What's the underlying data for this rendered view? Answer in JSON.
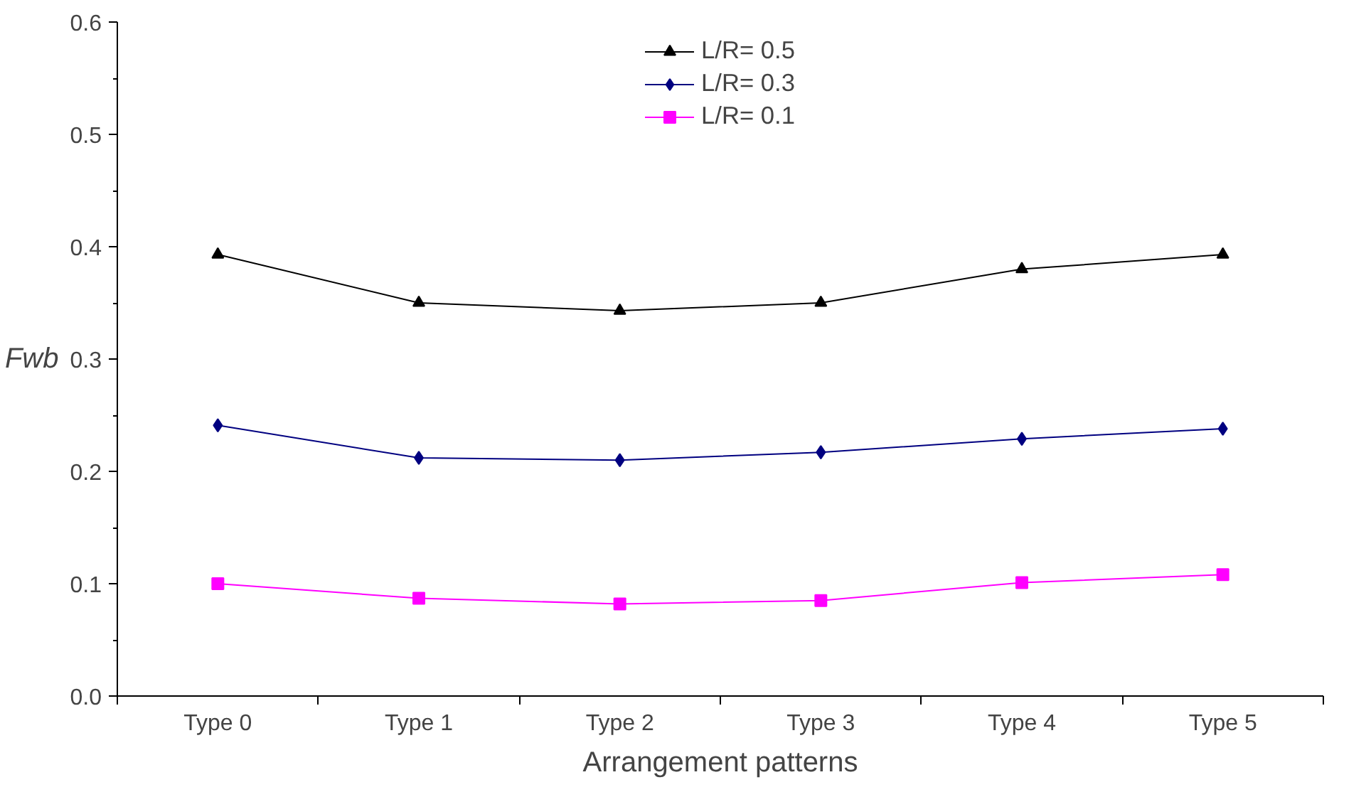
{
  "chart_data": {
    "type": "line",
    "xlabel": "Arrangement patterns",
    "ylabel": "Fwb",
    "categories": [
      "Type 0",
      "Type 1",
      "Type 2",
      "Type 3",
      "Type 4",
      "Type 5"
    ],
    "series": [
      {
        "name": "L/R= 0.5",
        "color": "#000000",
        "marker": "triangle",
        "values": [
          0.393,
          0.35,
          0.343,
          0.35,
          0.38,
          0.393
        ]
      },
      {
        "name": "L/R= 0.3",
        "color": "#000080",
        "marker": "diamond",
        "values": [
          0.241,
          0.212,
          0.21,
          0.217,
          0.229,
          0.238
        ]
      },
      {
        "name": "L/R= 0.1",
        "color": "#ff00ff",
        "marker": "square",
        "values": [
          0.1,
          0.087,
          0.082,
          0.085,
          0.101,
          0.108
        ]
      }
    ],
    "ylim": [
      0,
      0.6
    ],
    "yticks": [
      {
        "value": 0,
        "label": "0.0"
      },
      0.1,
      0.2,
      0.3,
      0.4,
      0.5,
      0.6
    ],
    "legend": "top",
    "grid": false,
    "line_style": "solid"
  }
}
